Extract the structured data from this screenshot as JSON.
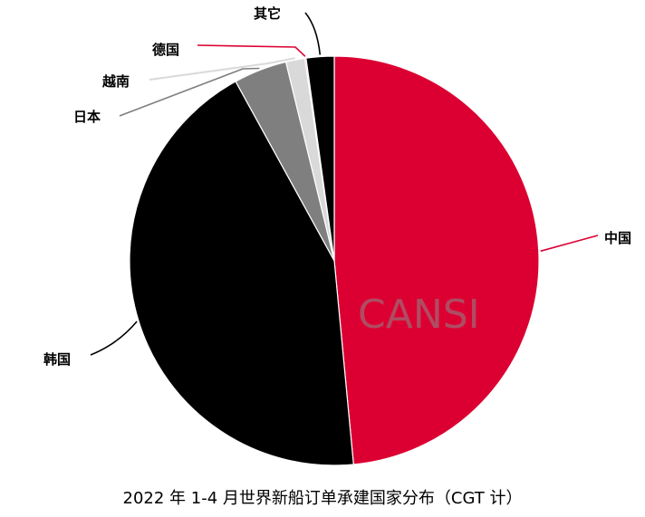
{
  "chart_data": {
    "type": "pie",
    "title": "2022 年 1-4 月世界新船订单承建国家分布（CGT 计）",
    "slices": [
      {
        "label": "中国",
        "value": 48.5,
        "color": "#dc0032"
      },
      {
        "label": "韩国",
        "value": 43.5,
        "color": "#000000"
      },
      {
        "label": "日本",
        "value": 4.2,
        "color": "#7f7f7f"
      },
      {
        "label": "越南",
        "value": 1.5,
        "color": "#d9d9d9"
      },
      {
        "label": "德国",
        "value": 0.1,
        "color": "#dc0032"
      },
      {
        "label": "其它",
        "value": 2.2,
        "color": "#000000"
      }
    ],
    "watermark": "CANSI",
    "legend": "none"
  }
}
